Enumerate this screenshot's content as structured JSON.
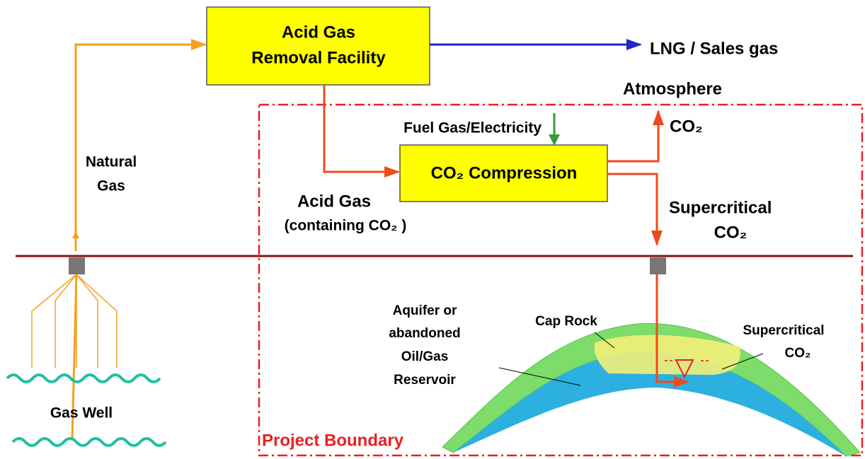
{
  "nodes": [
    {
      "lines": [
        "Acid Gas",
        "Removal Facility"
      ]
    },
    {
      "lines": [
        "CO₂ Compression"
      ]
    }
  ],
  "labels": {
    "sales_gas": "LNG / Sales gas",
    "atmosphere": "Atmosphere",
    "fuel": "Fuel Gas/Electricity",
    "co2_vent": "CO₂",
    "natural_gas": [
      "Natural",
      "Gas"
    ],
    "acid_gas": [
      "Acid Gas",
      "(containing CO₂ )"
    ],
    "supercritical_injection": [
      "Supercritical",
      "CO₂"
    ],
    "reservoir": [
      "Aquifer or",
      "abandoned",
      "Oil/Gas",
      "Reservoir"
    ],
    "cap_rock": "Cap Rock",
    "supercritical_plume": [
      "Supercritical",
      "CO₂"
    ],
    "gas_well": "Gas Well",
    "boundary": "Project Boundary"
  }
}
